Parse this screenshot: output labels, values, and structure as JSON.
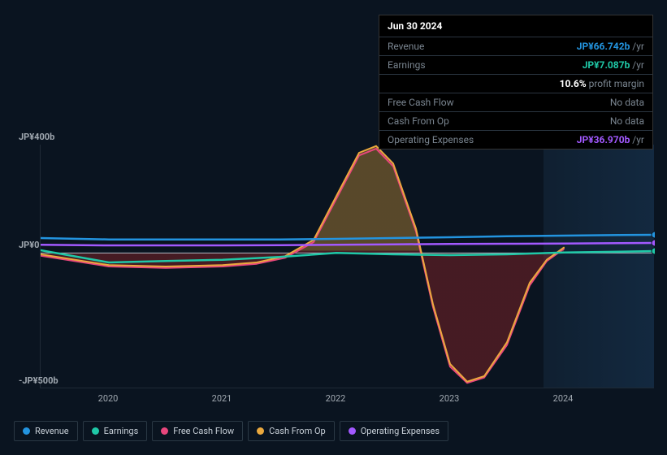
{
  "tooltip": {
    "date": "Jun 30 2024",
    "rows": [
      {
        "label": "Revenue",
        "value": "JP¥66.742b",
        "suffix": "/yr",
        "cls": "val-revenue"
      },
      {
        "label": "Earnings",
        "value": "JP¥7.087b",
        "suffix": "/yr",
        "cls": "val-earnings"
      },
      {
        "label": "",
        "value": "10.6%",
        "suffix": "profit margin",
        "cls": "val-bold"
      },
      {
        "label": "Free Cash Flow",
        "value": "No data",
        "suffix": "",
        "cls": "nodata"
      },
      {
        "label": "Cash From Op",
        "value": "No data",
        "suffix": "",
        "cls": "nodata"
      },
      {
        "label": "Operating Expenses",
        "value": "JP¥36.970b",
        "suffix": "/yr",
        "cls": "val-opex"
      }
    ]
  },
  "chart": {
    "type": "line-area",
    "ylim": [
      -500,
      400
    ],
    "xlim": [
      2019.4,
      2024.8
    ],
    "yticks": [
      {
        "v": 400,
        "label": "JP¥400b"
      },
      {
        "v": 0,
        "label": "JP¥0"
      },
      {
        "v": -500,
        "label": "-JP¥500b"
      }
    ],
    "xticks": [
      2020,
      2021,
      2022,
      2023,
      2024
    ],
    "background_color": "#0a1420",
    "axis_color": "#1f2a36",
    "series": {
      "revenue": {
        "label": "Revenue",
        "color": "#2394df",
        "width": 2.5,
        "pts": [
          [
            2019.4,
            55
          ],
          [
            2020,
            50
          ],
          [
            2020.5,
            50
          ],
          [
            2021,
            50
          ],
          [
            2021.5,
            50
          ],
          [
            2022,
            52
          ],
          [
            2022.5,
            55
          ],
          [
            2023,
            58
          ],
          [
            2023.5,
            62
          ],
          [
            2024,
            64
          ],
          [
            2024.5,
            66
          ],
          [
            2024.8,
            67
          ]
        ]
      },
      "earnings": {
        "label": "Earnings",
        "color": "#1fc8a7",
        "width": 2.5,
        "pts": [
          [
            2019.4,
            10
          ],
          [
            2020,
            -35
          ],
          [
            2020.5,
            -30
          ],
          [
            2021,
            -25
          ],
          [
            2021.5,
            -15
          ],
          [
            2022,
            0
          ],
          [
            2022.5,
            -5
          ],
          [
            2023,
            -8
          ],
          [
            2023.5,
            -5
          ],
          [
            2024,
            2
          ],
          [
            2024.5,
            5
          ],
          [
            2024.8,
            7
          ]
        ]
      },
      "fcf": {
        "label": "Free Cash Flow",
        "color": "#e8467c",
        "width": 2,
        "pts": [
          [
            2019.4,
            -10
          ],
          [
            2020,
            -50
          ],
          [
            2020.5,
            -55
          ],
          [
            2021,
            -50
          ],
          [
            2021.3,
            -40
          ],
          [
            2021.55,
            -18
          ],
          [
            2021.8,
            40
          ],
          [
            2022,
            200
          ],
          [
            2022.2,
            360
          ],
          [
            2022.35,
            385
          ],
          [
            2022.5,
            320
          ],
          [
            2022.7,
            80
          ],
          [
            2022.85,
            -200
          ],
          [
            2023,
            -420
          ],
          [
            2023.15,
            -480
          ],
          [
            2023.3,
            -460
          ],
          [
            2023.5,
            -340
          ],
          [
            2023.7,
            -120
          ],
          [
            2023.85,
            -30
          ],
          [
            2024,
            15
          ]
        ]
      },
      "cfo": {
        "label": "Cash From Op",
        "color": "#eba93e",
        "width": 2,
        "pts": [
          [
            2019.4,
            -5
          ],
          [
            2020,
            -45
          ],
          [
            2020.5,
            -50
          ],
          [
            2021,
            -45
          ],
          [
            2021.3,
            -35
          ],
          [
            2021.55,
            -12
          ],
          [
            2021.8,
            48
          ],
          [
            2022,
            210
          ],
          [
            2022.2,
            370
          ],
          [
            2022.35,
            395
          ],
          [
            2022.5,
            330
          ],
          [
            2022.7,
            90
          ],
          [
            2022.85,
            -190
          ],
          [
            2023,
            -410
          ],
          [
            2023.15,
            -475
          ],
          [
            2023.3,
            -455
          ],
          [
            2023.5,
            -330
          ],
          [
            2023.7,
            -110
          ],
          [
            2023.85,
            -25
          ],
          [
            2024,
            20
          ]
        ]
      },
      "opex": {
        "label": "Operating Expenses",
        "color": "#a259ff",
        "width": 2.5,
        "pts": [
          [
            2019.4,
            30
          ],
          [
            2020,
            28
          ],
          [
            2020.5,
            28
          ],
          [
            2021,
            28
          ],
          [
            2021.5,
            29
          ],
          [
            2022,
            30
          ],
          [
            2022.5,
            32
          ],
          [
            2023,
            33
          ],
          [
            2023.5,
            34
          ],
          [
            2024,
            35
          ],
          [
            2024.5,
            36
          ],
          [
            2024.8,
            37
          ]
        ]
      }
    },
    "fillArea": {
      "ref": "cfo",
      "colorPos": "rgba(235,169,62,0.35)",
      "colorNeg": "rgba(180,40,40,0.35)"
    },
    "zeroLine": "#aeb8c2",
    "marker_x": 2024.8,
    "markers": [
      {
        "series": "revenue",
        "color": "#2394df"
      },
      {
        "series": "opex",
        "color": "#a259ff"
      },
      {
        "series": "earnings",
        "color": "#1fc8a7"
      }
    ]
  },
  "legend": [
    {
      "key": "revenue",
      "label": "Revenue",
      "color": "#2394df"
    },
    {
      "key": "earnings",
      "label": "Earnings",
      "color": "#1fc8a7"
    },
    {
      "key": "fcf",
      "label": "Free Cash Flow",
      "color": "#e8467c"
    },
    {
      "key": "cfo",
      "label": "Cash From Op",
      "color": "#eba93e"
    },
    {
      "key": "opex",
      "label": "Operating Expenses",
      "color": "#a259ff"
    }
  ]
}
